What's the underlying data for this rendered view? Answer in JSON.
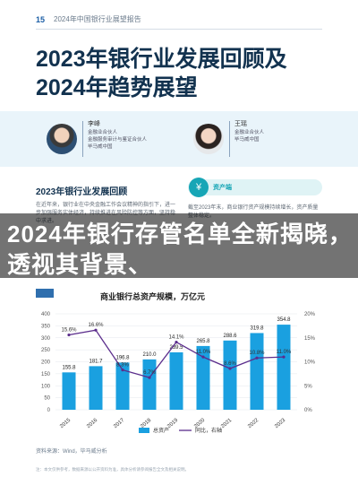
{
  "header": {
    "page_number": "15",
    "report_name": "2024年中国银行业展望报告"
  },
  "title": {
    "line1": "2023年银行业发展回顾及",
    "line2": "2024年趋势展望"
  },
  "authors": [
    {
      "name": "李峰",
      "role1": "金融业合伙人",
      "role2": "金融服务审计与鉴证合伙人",
      "role3": "毕马威中国"
    },
    {
      "name": "王瑶",
      "role1": "金融业合伙人",
      "role2": "毕马威中国",
      "role3": ""
    }
  ],
  "section": {
    "title": "2023年银行业发展回顾",
    "body": "在近年来，银行业在中央金融工作会议精神的指引下，进一步加强服务实体经济，持续推进在风险防控等方面，坚持稳中求进。",
    "badge_label": "资产端",
    "badge_icon": "coins-icon",
    "right_text": "截至2023年末，商业银行资产规模持续增长，资产质量整体稳定。"
  },
  "banner": {
    "text": "2024年银行存管名单全新揭晓，透视其背景、"
  },
  "figure": {
    "label": "图",
    "title": "商业银行总资产规模，万亿元",
    "source": "资料来源：Wind，毕马威分析"
  },
  "footnote": "注：本文仅供参考，数据来源以公开资料为准，具体分析请参阅报告全文及相关说明。",
  "chart_data": {
    "type": "bar",
    "title": "商业银行总资产规模，万亿元",
    "categories": [
      "2015",
      "2016",
      "2017",
      "2018",
      "2019",
      "2020",
      "2021",
      "2022",
      "2023"
    ],
    "series": [
      {
        "name": "总资产",
        "type": "bar",
        "values": [
          155.8,
          181.7,
          196.8,
          210.0,
          239.5,
          265.8,
          288.6,
          319.8,
          354.8
        ],
        "color": "#1aa0e0"
      },
      {
        "name": "同比，右轴",
        "type": "line",
        "values": [
          15.6,
          16.6,
          8.3,
          6.7,
          14.1,
          11.0,
          8.6,
          10.8,
          11.0
        ],
        "color": "#5b2d8c"
      }
    ],
    "y_left": {
      "ticks": [
        "0",
        "50",
        "100",
        "150",
        "200",
        "250",
        "300",
        "350",
        "400"
      ],
      "range": [
        0,
        400
      ]
    },
    "y_right": {
      "ticks": [
        "0%",
        "5%",
        "10%",
        "15%",
        "20%"
      ],
      "range": [
        0,
        20
      ]
    },
    "value_labels": [
      "155.8",
      "181.7",
      "196.8",
      "210.0",
      "239.5",
      "265.8",
      "288.6",
      "319.8",
      "354.8"
    ],
    "pct_labels": [
      "15.6%",
      "16.6%",
      "8.3%",
      "6.7%",
      "14.1%",
      "11.0%",
      "8.6%",
      "10.8%",
      "11.0%"
    ]
  }
}
